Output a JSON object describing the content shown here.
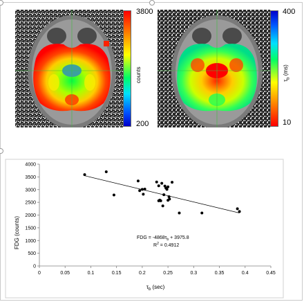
{
  "colorbar_fdg": {
    "max_label": "3800",
    "min_label": "200",
    "unit_label": "counts"
  },
  "colorbar_tau": {
    "max_label": "400",
    "min_label": "10",
    "unit_label": "τ",
    "unit_sub": "b",
    "unit_suffix": " (ms)"
  },
  "chart_data": {
    "type": "scatter",
    "xlabel": "τ",
    "xlabel_sub": "b",
    "xlabel_suffix": " (sec)",
    "ylabel": "FDG (counts)",
    "xlim": [
      0,
      0.45
    ],
    "ylim": [
      0,
      4000
    ],
    "xticks": [
      "0",
      "0.05",
      "0.1",
      "0.15",
      "0.2",
      "0.25",
      "0.3",
      "0.35",
      "0.4",
      "0.45"
    ],
    "yticks": [
      "0",
      "500",
      "1000",
      "1500",
      "2000",
      "2500",
      "3000",
      "3500",
      "4000"
    ],
    "grid": false,
    "trendline": {
      "slope": -4868,
      "intercept": 3975.8
    },
    "equation_line1": "FDG = -4868τ",
    "equation_sub": "b",
    "equation_rest": " + 3975.8",
    "r2_text": "R",
    "r2_sup": "2",
    "r2_value": " = 0.4912",
    "points": [
      [
        0.088,
        3590
      ],
      [
        0.13,
        3700
      ],
      [
        0.145,
        2790
      ],
      [
        0.192,
        3340
      ],
      [
        0.195,
        2960
      ],
      [
        0.2,
        3010
      ],
      [
        0.202,
        2820
      ],
      [
        0.205,
        3020
      ],
      [
        0.228,
        3300
      ],
      [
        0.232,
        3150
      ],
      [
        0.232,
        2560
      ],
      [
        0.234,
        2590
      ],
      [
        0.236,
        2560
      ],
      [
        0.238,
        3250
      ],
      [
        0.24,
        2360
      ],
      [
        0.242,
        2800
      ],
      [
        0.244,
        3140
      ],
      [
        0.246,
        3060
      ],
      [
        0.248,
        3010
      ],
      [
        0.25,
        3110
      ],
      [
        0.25,
        2580
      ],
      [
        0.252,
        2720
      ],
      [
        0.253,
        2630
      ],
      [
        0.258,
        3290
      ],
      [
        0.272,
        2080
      ],
      [
        0.316,
        2080
      ],
      [
        0.385,
        2250
      ],
      [
        0.389,
        2140
      ]
    ]
  }
}
